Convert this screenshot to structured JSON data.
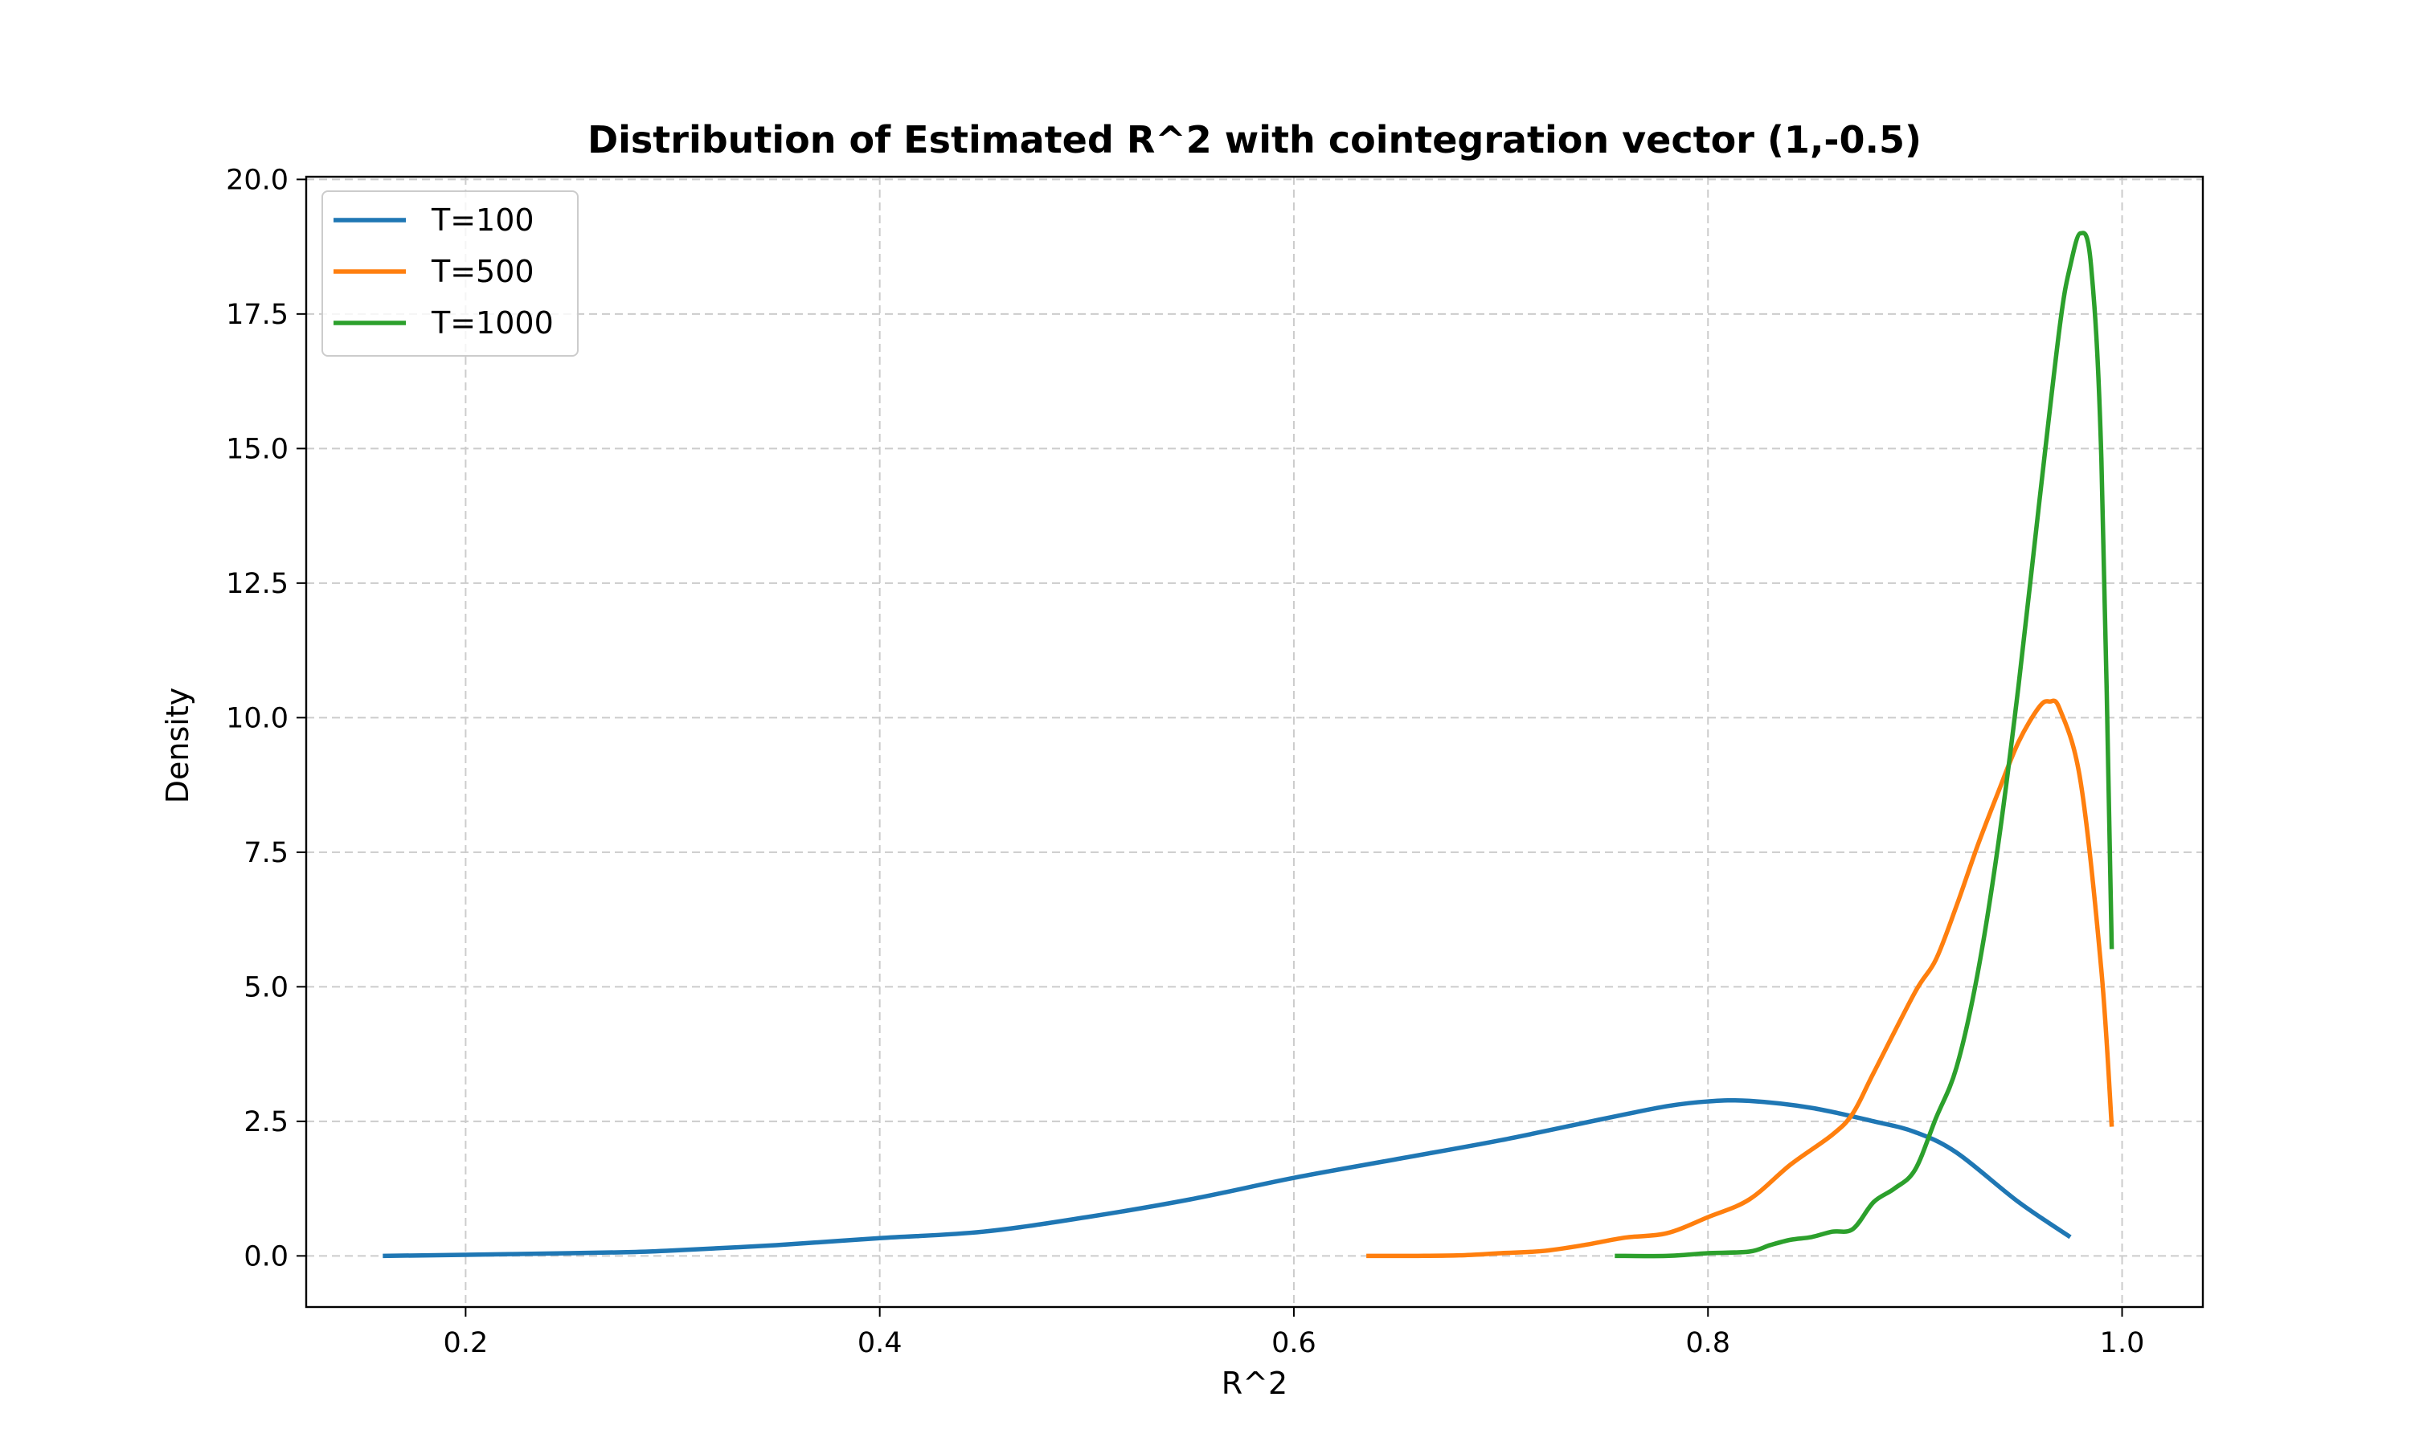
{
  "chart_data": {
    "type": "line",
    "title": "Distribution of Estimated R^2 with cointegration vector (1,-0.5)",
    "xlabel": "R^2",
    "ylabel": "Density",
    "xlim": [
      0.123,
      1.039
    ],
    "ylim": [
      -0.95,
      20.05
    ],
    "x_ticks": [
      0.2,
      0.4,
      0.6,
      0.8,
      1.0
    ],
    "x_tick_labels": [
      "0.2",
      "0.4",
      "0.6",
      "0.8",
      "1.0"
    ],
    "y_ticks": [
      0.0,
      2.5,
      5.0,
      7.5,
      10.0,
      12.5,
      15.0,
      17.5,
      20.0
    ],
    "y_tick_labels": [
      "0.0",
      "2.5",
      "5.0",
      "7.5",
      "10.0",
      "12.5",
      "15.0",
      "17.5",
      "20.0"
    ],
    "grid": true,
    "legend_position": "top-left",
    "series": [
      {
        "name": "T=100",
        "color": "#1f77b4",
        "x": [
          0.16,
          0.2,
          0.25,
          0.28,
          0.3,
          0.35,
          0.4,
          0.45,
          0.5,
          0.55,
          0.6,
          0.65,
          0.7,
          0.75,
          0.78,
          0.8,
          0.82,
          0.85,
          0.88,
          0.9,
          0.92,
          0.95,
          0.975
        ],
        "y": [
          0.0,
          0.02,
          0.05,
          0.07,
          0.1,
          0.2,
          0.33,
          0.45,
          0.72,
          1.05,
          1.45,
          1.8,
          2.15,
          2.55,
          2.78,
          2.87,
          2.88,
          2.75,
          2.5,
          2.3,
          1.92,
          1.0,
          0.35
        ]
      },
      {
        "name": "T=500",
        "color": "#ff7f0e",
        "x": [
          0.635,
          0.66,
          0.68,
          0.7,
          0.72,
          0.74,
          0.76,
          0.78,
          0.8,
          0.82,
          0.84,
          0.86,
          0.87,
          0.88,
          0.9,
          0.91,
          0.92,
          0.93,
          0.94,
          0.95,
          0.96,
          0.965,
          0.97,
          0.98,
          0.99,
          0.995
        ],
        "y": [
          0.0,
          0.0,
          0.01,
          0.05,
          0.09,
          0.2,
          0.34,
          0.42,
          0.72,
          1.05,
          1.7,
          2.25,
          2.65,
          3.4,
          4.9,
          5.5,
          6.5,
          7.6,
          8.6,
          9.55,
          10.2,
          10.3,
          10.15,
          8.8,
          5.3,
          2.4
        ]
      },
      {
        "name": "T=1000",
        "color": "#2ca02c",
        "x": [
          0.755,
          0.78,
          0.8,
          0.82,
          0.83,
          0.84,
          0.85,
          0.86,
          0.87,
          0.88,
          0.89,
          0.9,
          0.91,
          0.92,
          0.93,
          0.94,
          0.95,
          0.96,
          0.97,
          0.975,
          0.98,
          0.985,
          0.99,
          0.995
        ],
        "y": [
          0.0,
          0.0,
          0.05,
          0.08,
          0.2,
          0.3,
          0.35,
          0.45,
          0.5,
          1.0,
          1.25,
          1.6,
          2.55,
          3.5,
          5.2,
          7.6,
          10.6,
          14.0,
          17.3,
          18.4,
          19.0,
          18.4,
          14.8,
          5.7
        ]
      }
    ]
  }
}
